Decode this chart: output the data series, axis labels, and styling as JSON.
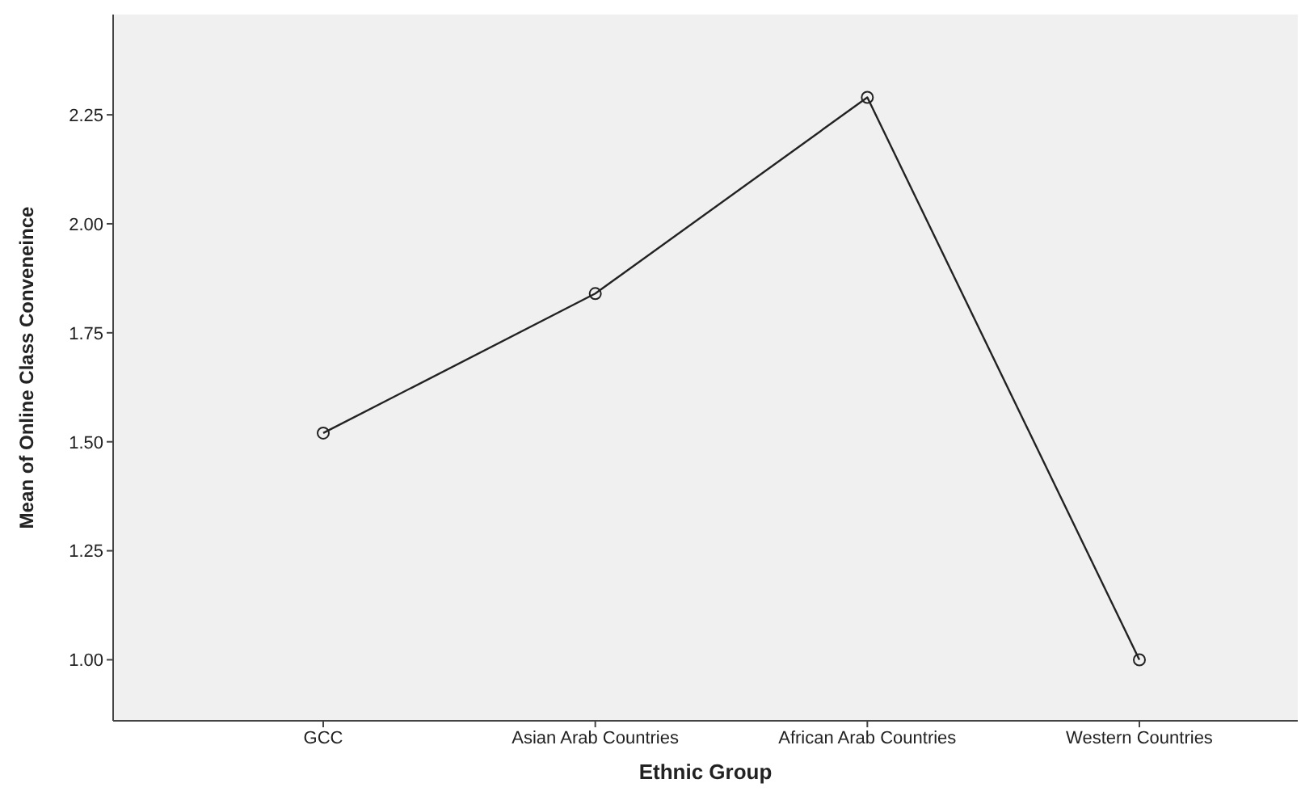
{
  "chart_data": {
    "type": "line",
    "xlabel": "Ethnic Group",
    "ylabel": "Mean of Online Class Conveneince",
    "categories": [
      "GCC",
      "Asian Arab Countries",
      "African Arab Countries",
      "Western Countries"
    ],
    "series": [
      {
        "color": "#222222",
        "values": [
          1.52,
          1.84,
          2.29,
          1.0
        ]
      }
    ],
    "ylim": [
      0.86,
      2.48
    ],
    "yticks": [
      {
        "value": 1,
        "label": "1.00"
      },
      1.25,
      {
        "value": 1.5,
        "label": "1.50"
      },
      1.75,
      {
        "value": 2,
        "label": "2.00"
      },
      2.25
    ],
    "marker": "circle",
    "grid": false,
    "legend": false
  }
}
